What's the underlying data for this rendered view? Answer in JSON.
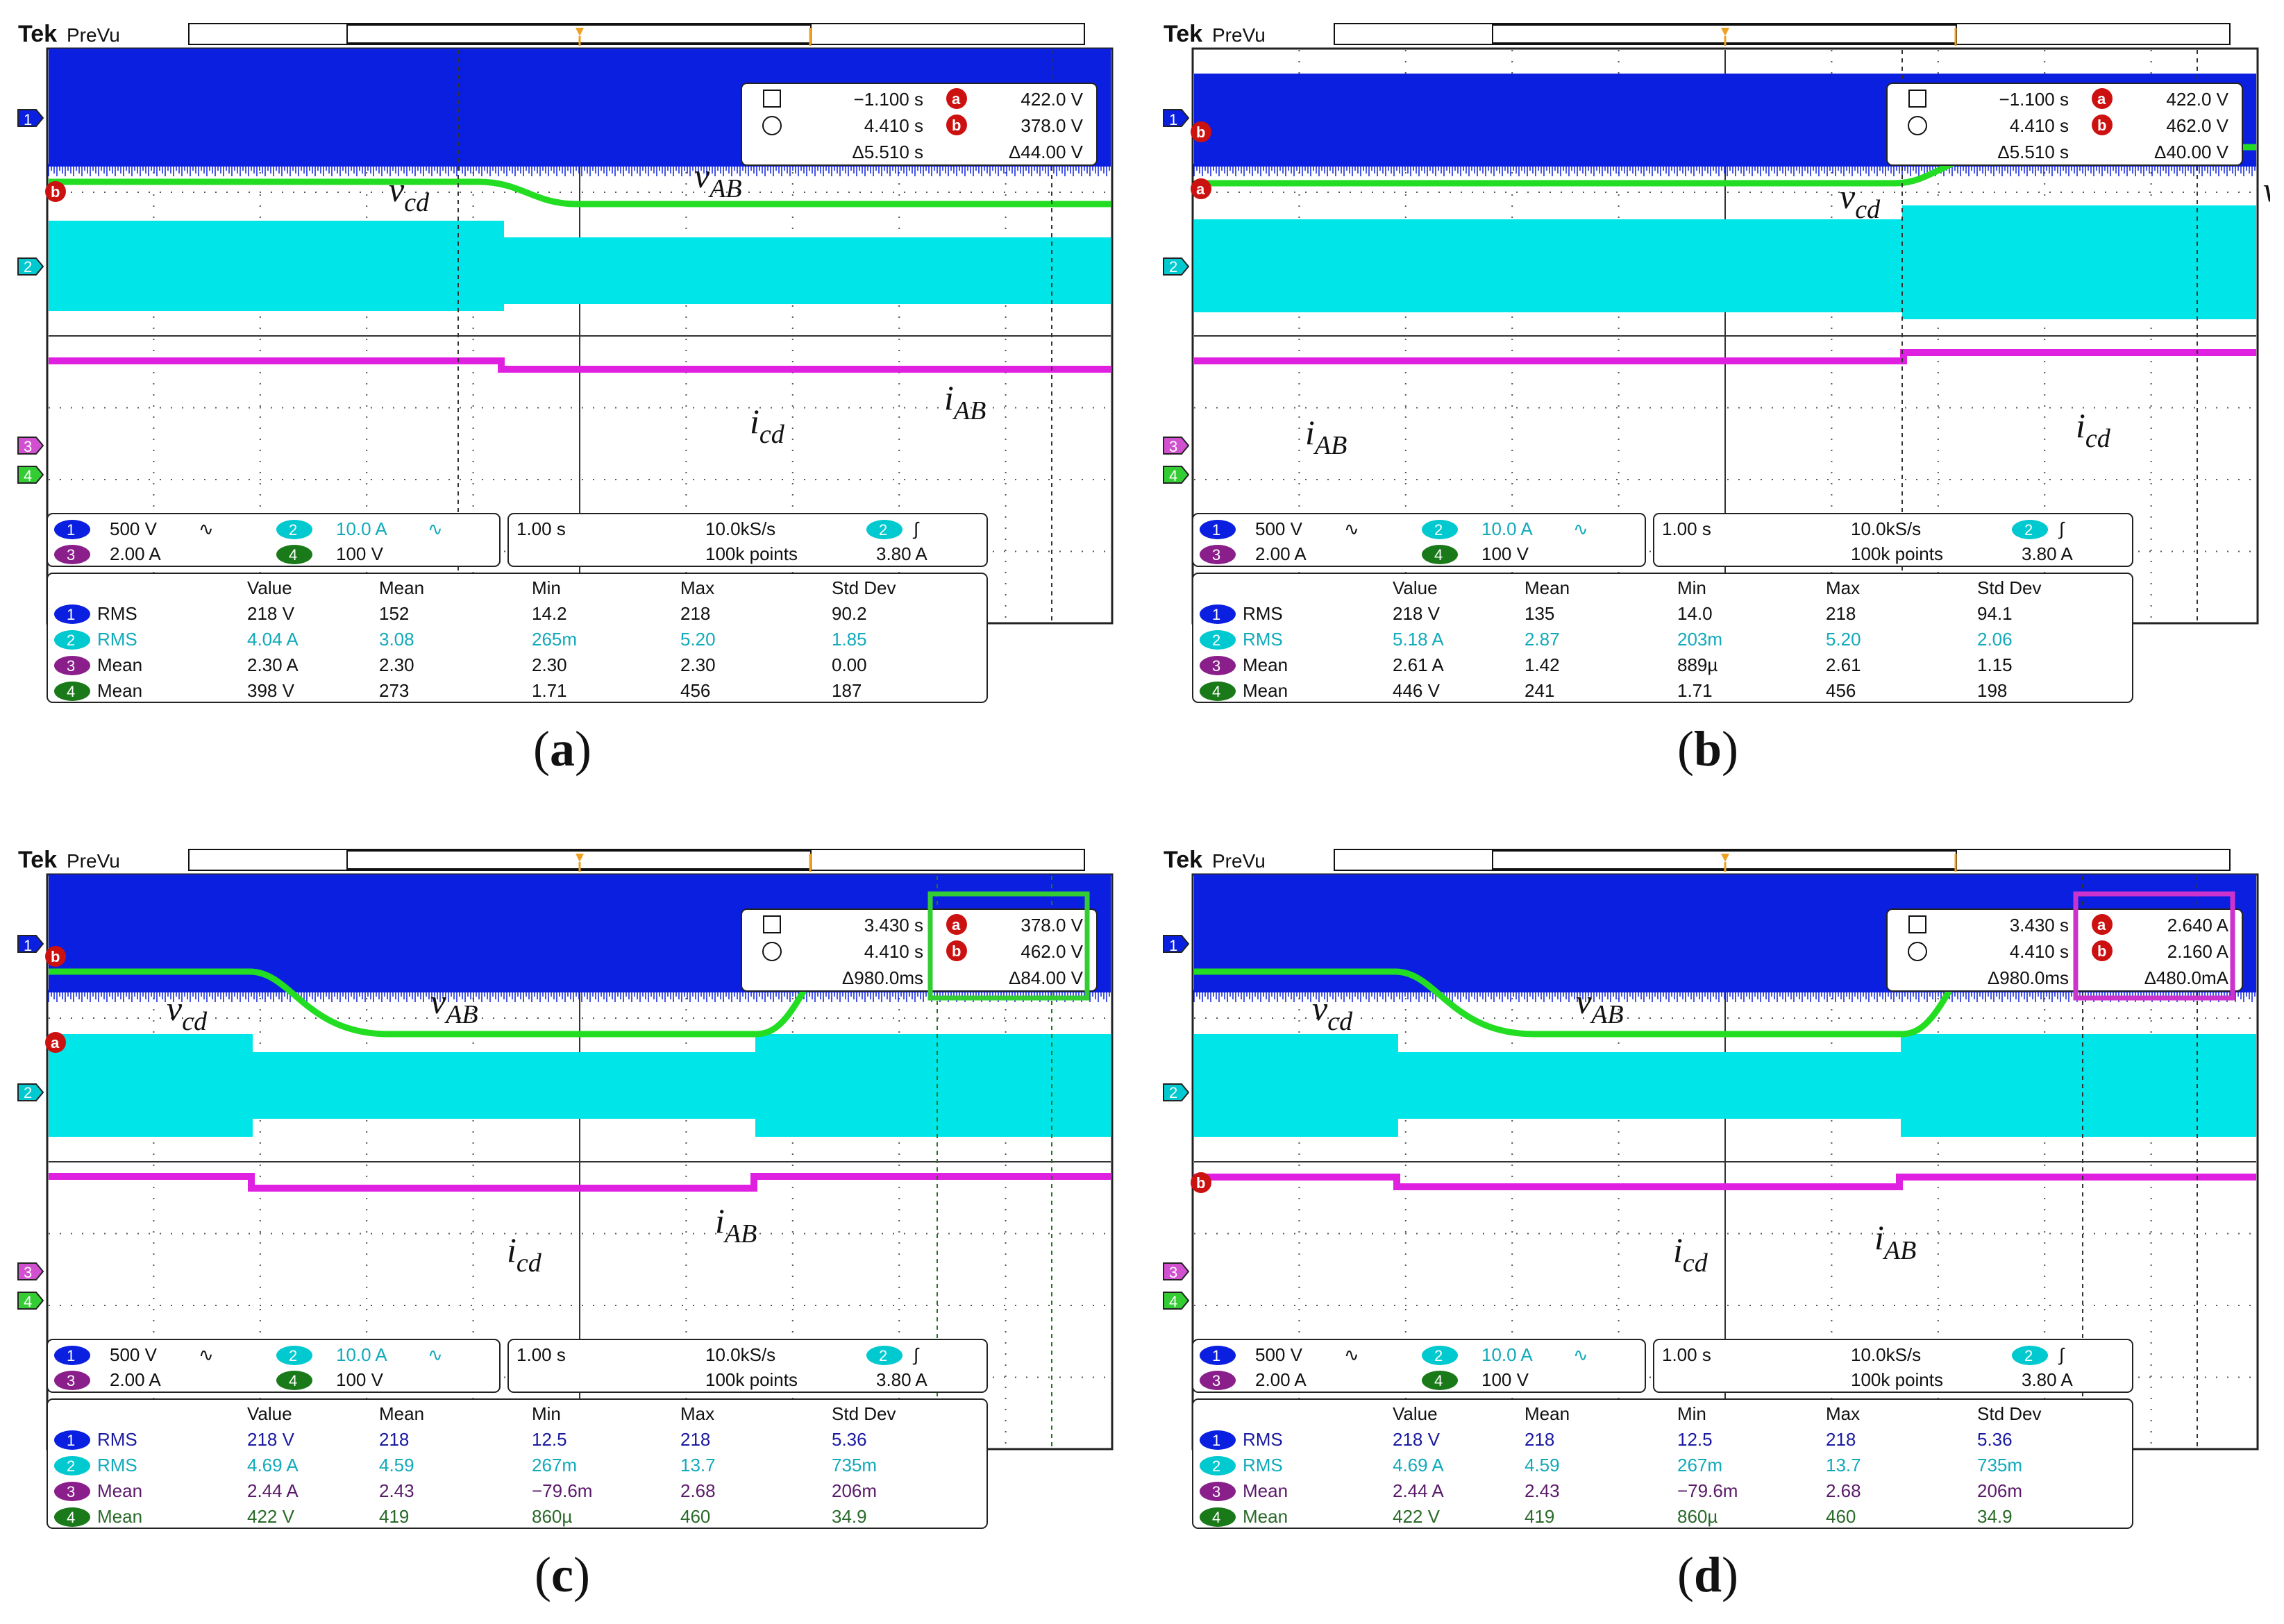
{
  "common": {
    "brand": "Tek",
    "mode": "PreVu",
    "ch_markers": [
      "1",
      "2",
      "3",
      "4"
    ],
    "channel_settings": [
      {
        "num": "1",
        "scale": "500 V",
        "coupling": "∿"
      },
      {
        "num": "2",
        "scale": "10.0 A",
        "coupling": "∿"
      },
      {
        "num": "3",
        "scale": "2.00 A",
        "coupling": ""
      },
      {
        "num": "4",
        "scale": "100 V",
        "coupling": ""
      }
    ],
    "timebase": "1.00 s",
    "sample_rate": "10.0kS/s",
    "record_length": "100k points",
    "trigger_ch": "2",
    "trigger_slope": "∫",
    "trigger_level": "3.80 A",
    "table_headers": [
      "Value",
      "Mean",
      "Min",
      "Max",
      "Std Dev"
    ],
    "labels": {
      "vcd": "v",
      "vcd_sub": "cd",
      "vab": "v",
      "vab_sub": "AB",
      "icd": "i",
      "icd_sub": "cd",
      "iab": "i",
      "iab_sub": "AB"
    },
    "colors": {
      "ch1": "#0a1fe0",
      "ch2": "#00e5e8",
      "ch3": "#e020e0",
      "ch4": "#22dd22",
      "cursor_red": "#cc1111"
    }
  },
  "panels": [
    {
      "caption": "a",
      "cursor": {
        "t1": "−1.100 s",
        "t2": "4.410 s",
        "dt": "Δ5.510 s",
        "a": "422.0 V",
        "b": "378.0 V",
        "dv": "Δ44.00 V"
      },
      "stats": [
        {
          "num": "1",
          "type": "RMS",
          "value": "218 V",
          "mean": "152",
          "min": "14.2",
          "max": "218",
          "std": "90.2"
        },
        {
          "num": "2",
          "type": "RMS",
          "value": "4.04 A",
          "mean": "3.08",
          "min": "265m",
          "max": "5.20",
          "std": "1.85"
        },
        {
          "num": "3",
          "type": "Mean",
          "value": "2.30 A",
          "mean": "2.30",
          "min": "2.30",
          "max": "2.30",
          "std": "0.00"
        },
        {
          "num": "4",
          "type": "Mean",
          "value": "398 V",
          "mean": "273",
          "min": "1.71",
          "max": "456",
          "std": "187"
        }
      ]
    },
    {
      "caption": "b",
      "cursor": {
        "t1": "−1.100 s",
        "t2": "4.410 s",
        "dt": "Δ5.510 s",
        "a": "422.0 V",
        "b": "462.0 V",
        "dv": "Δ40.00 V"
      },
      "stats": [
        {
          "num": "1",
          "type": "RMS",
          "value": "218 V",
          "mean": "135",
          "min": "14.0",
          "max": "218",
          "std": "94.1"
        },
        {
          "num": "2",
          "type": "RMS",
          "value": "5.18 A",
          "mean": "2.87",
          "min": "203m",
          "max": "5.20",
          "std": "2.06"
        },
        {
          "num": "3",
          "type": "Mean",
          "value": "2.61 A",
          "mean": "1.42",
          "min": "889µ",
          "max": "2.61",
          "std": "1.15"
        },
        {
          "num": "4",
          "type": "Mean",
          "value": "446 V",
          "mean": "241",
          "min": "1.71",
          "max": "456",
          "std": "198"
        }
      ]
    },
    {
      "caption": "c",
      "cursor": {
        "t1": "3.430 s",
        "t2": "4.410 s",
        "dt": "Δ980.0ms",
        "a": "378.0 V",
        "b": "462.0 V",
        "dv": "Δ84.00 V"
      },
      "stats": [
        {
          "num": "1",
          "type": "RMS",
          "value": "218 V",
          "mean": "218",
          "min": "12.5",
          "max": "218",
          "std": "5.36"
        },
        {
          "num": "2",
          "type": "RMS",
          "value": "4.69 A",
          "mean": "4.59",
          "min": "267m",
          "max": "13.7",
          "std": "735m"
        },
        {
          "num": "3",
          "type": "Mean",
          "value": "2.44 A",
          "mean": "2.43",
          "min": "−79.6m",
          "max": "2.68",
          "std": "206m"
        },
        {
          "num": "4",
          "type": "Mean",
          "value": "422 V",
          "mean": "419",
          "min": "860µ",
          "max": "460",
          "std": "34.9"
        }
      ]
    },
    {
      "caption": "d",
      "cursor": {
        "t1": "3.430 s",
        "t2": "4.410 s",
        "dt": "Δ980.0ms",
        "a": "2.640 A",
        "b": "2.160 A",
        "dv": "Δ480.0mA"
      },
      "stats": [
        {
          "num": "1",
          "type": "RMS",
          "value": "218 V",
          "mean": "218",
          "min": "12.5",
          "max": "218",
          "std": "5.36"
        },
        {
          "num": "2",
          "type": "RMS",
          "value": "4.69 A",
          "mean": "4.59",
          "min": "267m",
          "max": "13.7",
          "std": "735m"
        },
        {
          "num": "3",
          "type": "Mean",
          "value": "2.44 A",
          "mean": "2.43",
          "min": "−79.6m",
          "max": "2.68",
          "std": "206m"
        },
        {
          "num": "4",
          "type": "Mean",
          "value": "422 V",
          "mean": "419",
          "min": "860µ",
          "max": "460",
          "std": "34.9"
        }
      ]
    }
  ]
}
